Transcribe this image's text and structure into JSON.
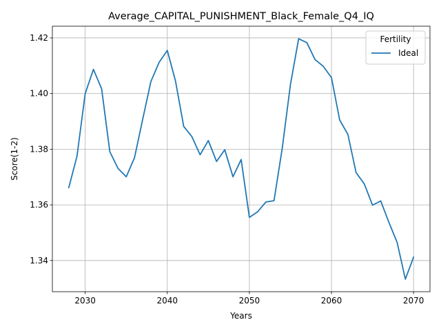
{
  "chart_data": {
    "type": "line",
    "title": "Average_CAPITAL_PUNISHMENT_Black_Female_Q4_IQ",
    "xlabel": "Years",
    "ylabel": "Score(1-2)",
    "xlim": [
      2026,
      2072
    ],
    "ylim": [
      1.3288,
      1.4242
    ],
    "xticks": [
      2030,
      2040,
      2050,
      2060,
      2070
    ],
    "yticks": [
      1.34,
      1.36,
      1.38,
      1.4,
      1.42
    ],
    "ytick_labels": [
      "1.34",
      "1.36",
      "1.38",
      "1.40",
      "1.42"
    ],
    "grid": true,
    "legend": {
      "title": "Fertility",
      "placement": "top-right"
    },
    "series": [
      {
        "name": "Ideal",
        "color": "#1f77b4",
        "x": [
          2028,
          2029,
          2030,
          2031,
          2032,
          2033,
          2034,
          2035,
          2036,
          2037,
          2038,
          2039,
          2040,
          2041,
          2042,
          2043,
          2044,
          2045,
          2046,
          2047,
          2048,
          2049,
          2050,
          2051,
          2052,
          2053,
          2054,
          2055,
          2056,
          2057,
          2058,
          2059,
          2060,
          2061,
          2062,
          2063,
          2064,
          2065,
          2066,
          2067,
          2068,
          2069,
          2070
        ],
        "values": [
          1.3662,
          1.3775,
          1.4,
          1.4087,
          1.4017,
          1.3791,
          1.3731,
          1.3701,
          1.3769,
          1.3907,
          1.4043,
          1.4112,
          1.4155,
          1.4045,
          1.3882,
          1.3845,
          1.378,
          1.3831,
          1.3756,
          1.3798,
          1.3701,
          1.3763,
          1.3555,
          1.3575,
          1.361,
          1.3615,
          1.3803,
          1.4032,
          1.4197,
          1.4183,
          1.4122,
          1.4098,
          1.4057,
          1.3905,
          1.3853,
          1.3716,
          1.3675,
          1.3599,
          1.3614,
          1.3537,
          1.3465,
          1.3333,
          1.3412
        ]
      }
    ]
  }
}
